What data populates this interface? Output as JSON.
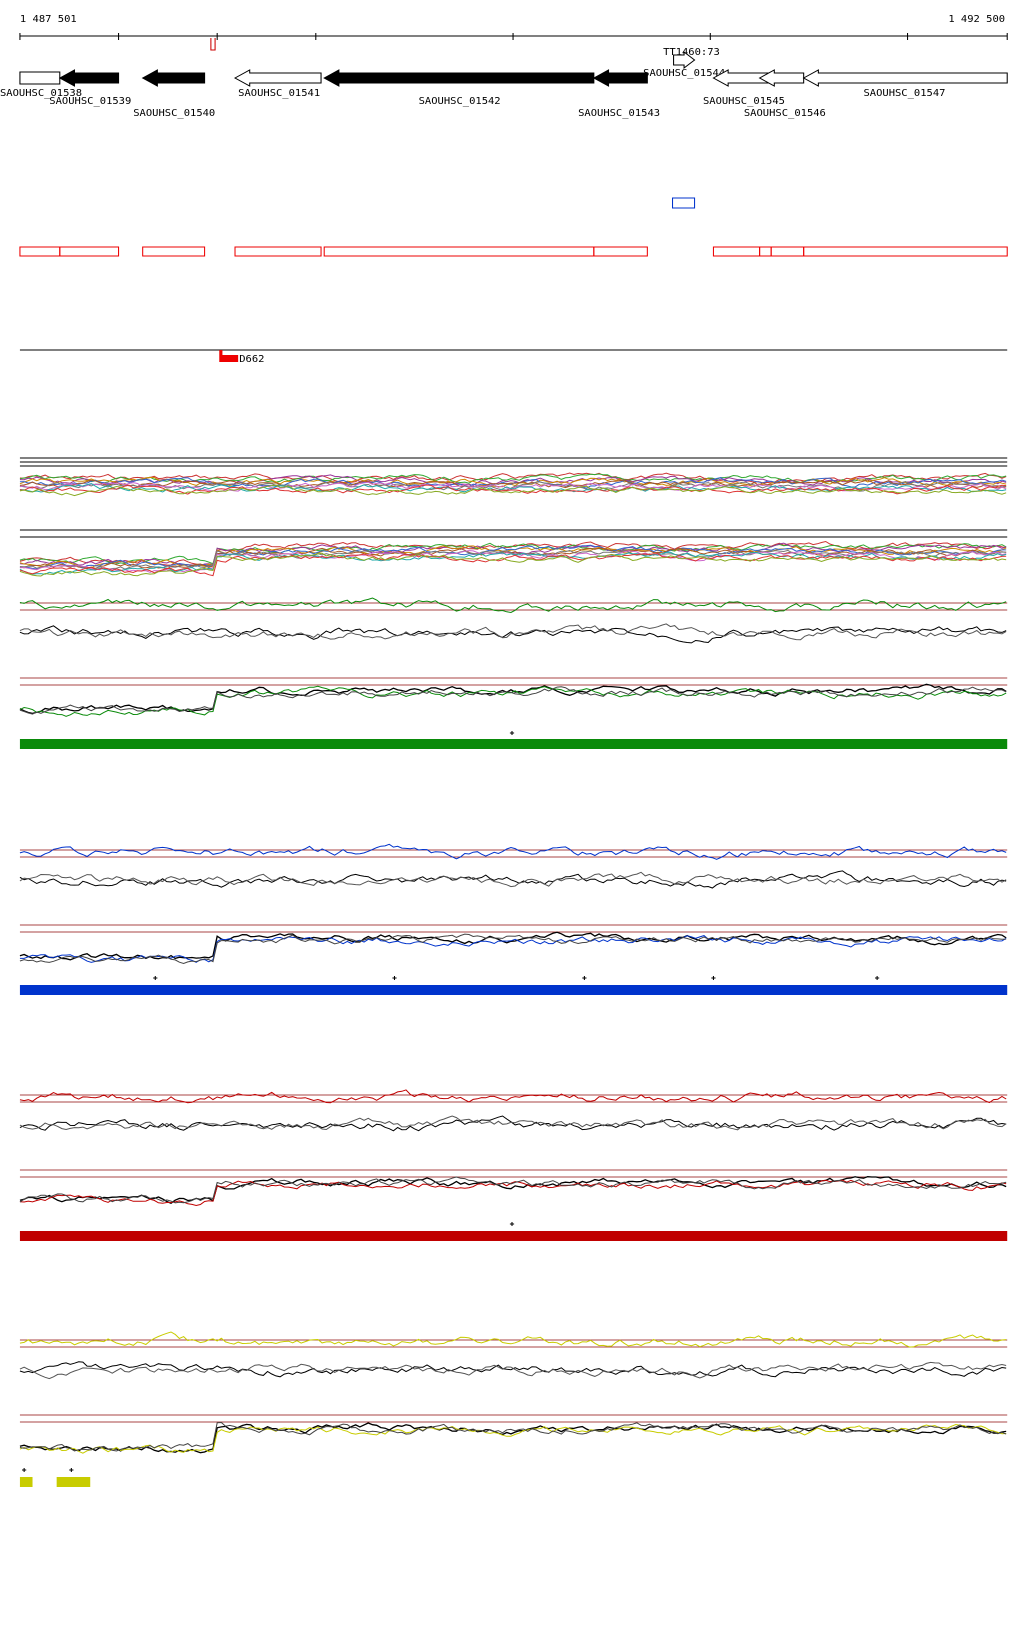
{
  "ruler": {
    "start": "1 487 501",
    "end": "1 492 500"
  },
  "genes": [
    {
      "label": "SAOUHSC_01538"
    },
    {
      "label": "SAOUHSC_01539"
    },
    {
      "label": "SAOUHSC_01540"
    },
    {
      "label": "SAOUHSC_01541"
    },
    {
      "label": "SAOUHSC_01542"
    },
    {
      "label": "SAOUHSC_01543"
    },
    {
      "label": "SAOUHSC_01544"
    },
    {
      "label": "SAOUHSC_01545"
    },
    {
      "label": "SAOUHSC_01546"
    },
    {
      "label": "SAOUHSC_01547"
    }
  ],
  "features": {
    "terminator": "TT1460:73",
    "variant": "D662"
  }
}
